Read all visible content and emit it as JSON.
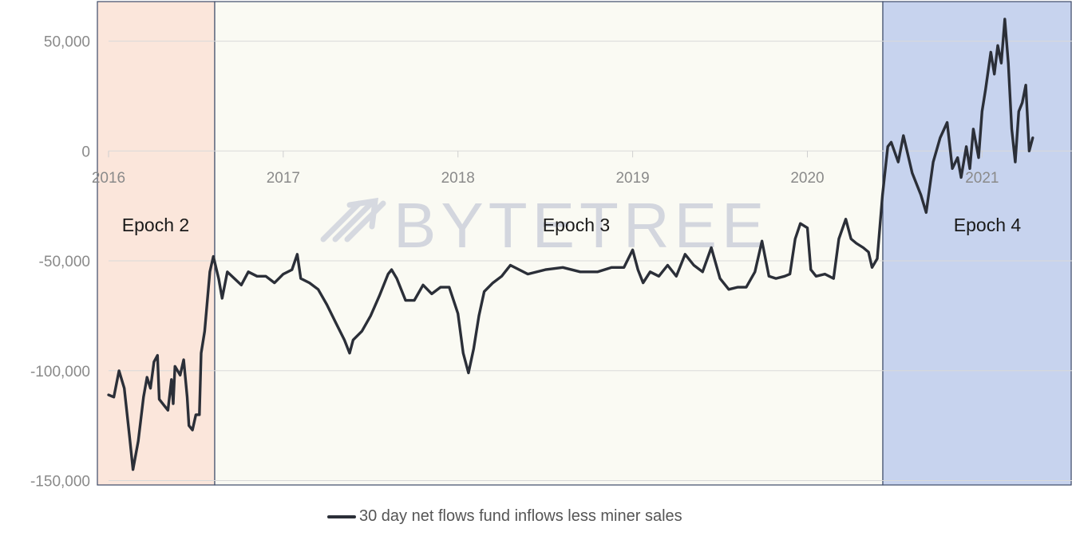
{
  "chart_data": {
    "type": "line",
    "title": "",
    "xlabel": "",
    "ylabel": "",
    "x_ticks": [
      "2016",
      "2017",
      "2018",
      "2019",
      "2020",
      "2021"
    ],
    "y_ticks": [
      50000,
      0,
      -50000,
      -100000,
      -150000
    ],
    "y_tick_labels": [
      "50,000",
      "0",
      "-50,000",
      "-100,000",
      "-150,000"
    ],
    "xlim": [
      2016.0,
      2021.3
    ],
    "ylim": [
      -152000,
      68000
    ],
    "grid": "horizontal",
    "legend_position": "bottom",
    "watermark": "BYTETREE",
    "epochs": [
      {
        "label": "Epoch 2",
        "start": 2015.8,
        "end": 2016.58,
        "color": "#fbe6db"
      },
      {
        "label": "Epoch 3",
        "start": 2016.58,
        "end": 2020.29,
        "color": "#fafaf3"
      },
      {
        "label": "Epoch 4",
        "start": 2020.29,
        "end": 2021.3,
        "color": "#c7d3ee"
      }
    ],
    "series": [
      {
        "name": "30 day net flows fund inflows less miner sales",
        "color": "#2b2f38",
        "points": [
          [
            2016.0,
            -111000
          ],
          [
            2016.03,
            -112000
          ],
          [
            2016.06,
            -100000
          ],
          [
            2016.09,
            -108000
          ],
          [
            2016.12,
            -130000
          ],
          [
            2016.14,
            -145000
          ],
          [
            2016.17,
            -132000
          ],
          [
            2016.2,
            -112000
          ],
          [
            2016.22,
            -103000
          ],
          [
            2016.24,
            -108000
          ],
          [
            2016.26,
            -96000
          ],
          [
            2016.28,
            -93000
          ],
          [
            2016.29,
            -113000
          ],
          [
            2016.32,
            -116000
          ],
          [
            2016.34,
            -118000
          ],
          [
            2016.36,
            -104000
          ],
          [
            2016.37,
            -115000
          ],
          [
            2016.38,
            -98000
          ],
          [
            2016.41,
            -102000
          ],
          [
            2016.43,
            -95000
          ],
          [
            2016.45,
            -112000
          ],
          [
            2016.46,
            -125000
          ],
          [
            2016.48,
            -127000
          ],
          [
            2016.5,
            -120000
          ],
          [
            2016.52,
            -120000
          ],
          [
            2016.53,
            -92000
          ],
          [
            2016.55,
            -82000
          ],
          [
            2016.58,
            -55000
          ],
          [
            2016.6,
            -48000
          ],
          [
            2016.63,
            -58000
          ],
          [
            2016.65,
            -67000
          ],
          [
            2016.68,
            -55000
          ],
          [
            2016.72,
            -58000
          ],
          [
            2016.76,
            -61000
          ],
          [
            2016.8,
            -55000
          ],
          [
            2016.85,
            -57000
          ],
          [
            2016.9,
            -57000
          ],
          [
            2016.95,
            -60000
          ],
          [
            2017.0,
            -56000
          ],
          [
            2017.05,
            -54000
          ],
          [
            2017.08,
            -47000
          ],
          [
            2017.1,
            -58000
          ],
          [
            2017.15,
            -60000
          ],
          [
            2017.2,
            -63000
          ],
          [
            2017.25,
            -70000
          ],
          [
            2017.3,
            -78000
          ],
          [
            2017.35,
            -86000
          ],
          [
            2017.38,
            -92000
          ],
          [
            2017.4,
            -86000
          ],
          [
            2017.45,
            -82000
          ],
          [
            2017.5,
            -75000
          ],
          [
            2017.55,
            -66000
          ],
          [
            2017.6,
            -56000
          ],
          [
            2017.62,
            -54000
          ],
          [
            2017.65,
            -58000
          ],
          [
            2017.7,
            -68000
          ],
          [
            2017.75,
            -68000
          ],
          [
            2017.8,
            -61000
          ],
          [
            2017.85,
            -65000
          ],
          [
            2017.9,
            -62000
          ],
          [
            2017.95,
            -62000
          ],
          [
            2018.0,
            -74000
          ],
          [
            2018.03,
            -92000
          ],
          [
            2018.06,
            -101000
          ],
          [
            2018.09,
            -90000
          ],
          [
            2018.12,
            -75000
          ],
          [
            2018.15,
            -64000
          ],
          [
            2018.2,
            -60000
          ],
          [
            2018.25,
            -57000
          ],
          [
            2018.3,
            -52000
          ],
          [
            2018.4,
            -56000
          ],
          [
            2018.5,
            -54000
          ],
          [
            2018.6,
            -53000
          ],
          [
            2018.7,
            -55000
          ],
          [
            2018.8,
            -55000
          ],
          [
            2018.88,
            -53000
          ],
          [
            2018.95,
            -53000
          ],
          [
            2019.0,
            -45000
          ],
          [
            2019.03,
            -54000
          ],
          [
            2019.06,
            -60000
          ],
          [
            2019.1,
            -55000
          ],
          [
            2019.15,
            -57000
          ],
          [
            2019.2,
            -52000
          ],
          [
            2019.25,
            -57000
          ],
          [
            2019.3,
            -47000
          ],
          [
            2019.35,
            -52000
          ],
          [
            2019.4,
            -55000
          ],
          [
            2019.45,
            -44000
          ],
          [
            2019.5,
            -58000
          ],
          [
            2019.55,
            -63000
          ],
          [
            2019.6,
            -62000
          ],
          [
            2019.65,
            -62000
          ],
          [
            2019.7,
            -55000
          ],
          [
            2019.74,
            -41000
          ],
          [
            2019.78,
            -57000
          ],
          [
            2019.82,
            -58000
          ],
          [
            2019.87,
            -57000
          ],
          [
            2019.9,
            -56000
          ],
          [
            2019.93,
            -40000
          ],
          [
            2019.96,
            -33000
          ],
          [
            2020.0,
            -35000
          ],
          [
            2020.02,
            -54000
          ],
          [
            2020.05,
            -57000
          ],
          [
            2020.1,
            -56000
          ],
          [
            2020.15,
            -58000
          ],
          [
            2020.18,
            -40000
          ],
          [
            2020.22,
            -31000
          ],
          [
            2020.25,
            -40000
          ],
          [
            2020.28,
            -42000
          ],
          [
            2020.32,
            -44000
          ],
          [
            2020.35,
            -46000
          ],
          [
            2020.37,
            -53000
          ],
          [
            2020.4,
            -49000
          ],
          [
            2020.43,
            -20000
          ],
          [
            2020.46,
            2000
          ],
          [
            2020.48,
            4000
          ],
          [
            2020.52,
            -5000
          ],
          [
            2020.55,
            7000
          ],
          [
            2020.6,
            -10000
          ],
          [
            2020.65,
            -20000
          ],
          [
            2020.68,
            -28000
          ],
          [
            2020.72,
            -5000
          ],
          [
            2020.76,
            6000
          ],
          [
            2020.8,
            13000
          ],
          [
            2020.83,
            -8000
          ],
          [
            2020.86,
            -3000
          ],
          [
            2020.88,
            -12000
          ],
          [
            2020.91,
            2000
          ],
          [
            2020.93,
            -8000
          ],
          [
            2020.95,
            10000
          ],
          [
            2020.98,
            -3000
          ],
          [
            2021.0,
            18000
          ],
          [
            2021.02,
            28000
          ],
          [
            2021.05,
            45000
          ],
          [
            2021.07,
            35000
          ],
          [
            2021.09,
            48000
          ],
          [
            2021.11,
            40000
          ],
          [
            2021.13,
            60000
          ],
          [
            2021.15,
            40000
          ],
          [
            2021.17,
            10000
          ],
          [
            2021.19,
            -5000
          ],
          [
            2021.21,
            18000
          ],
          [
            2021.23,
            22000
          ],
          [
            2021.25,
            30000
          ],
          [
            2021.27,
            0
          ],
          [
            2021.29,
            6000
          ]
        ]
      }
    ]
  }
}
